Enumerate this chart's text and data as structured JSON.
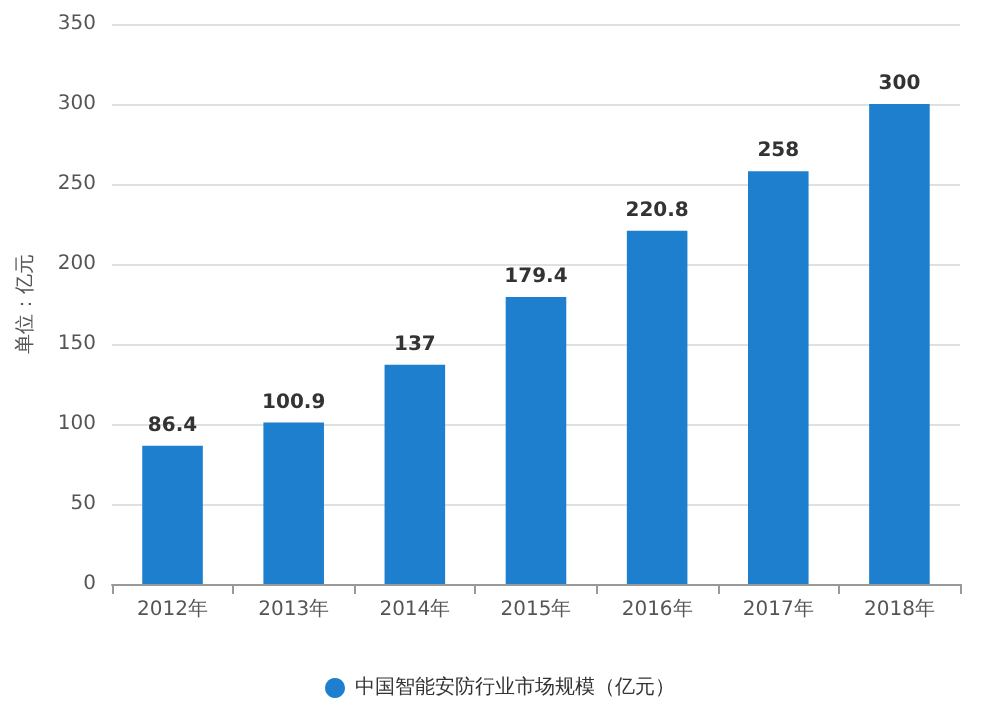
{
  "chart_data": {
    "type": "bar",
    "ylabel": "单位：亿元",
    "categories": [
      "2012年",
      "2013年",
      "2014年",
      "2015年",
      "2016年",
      "2017年",
      "2018年"
    ],
    "series": [
      {
        "name": "中国智能安防行业市场规模（亿元）",
        "color": "#1f7fcf",
        "values": [
          86.4,
          100.9,
          137,
          179.4,
          220.8,
          258,
          300
        ]
      }
    ],
    "ylim": [
      0,
      350
    ],
    "yticks": [
      0,
      50,
      100,
      150,
      200,
      250,
      300,
      350
    ],
    "grid": "y",
    "legend": "bottom",
    "data_labels": true
  }
}
